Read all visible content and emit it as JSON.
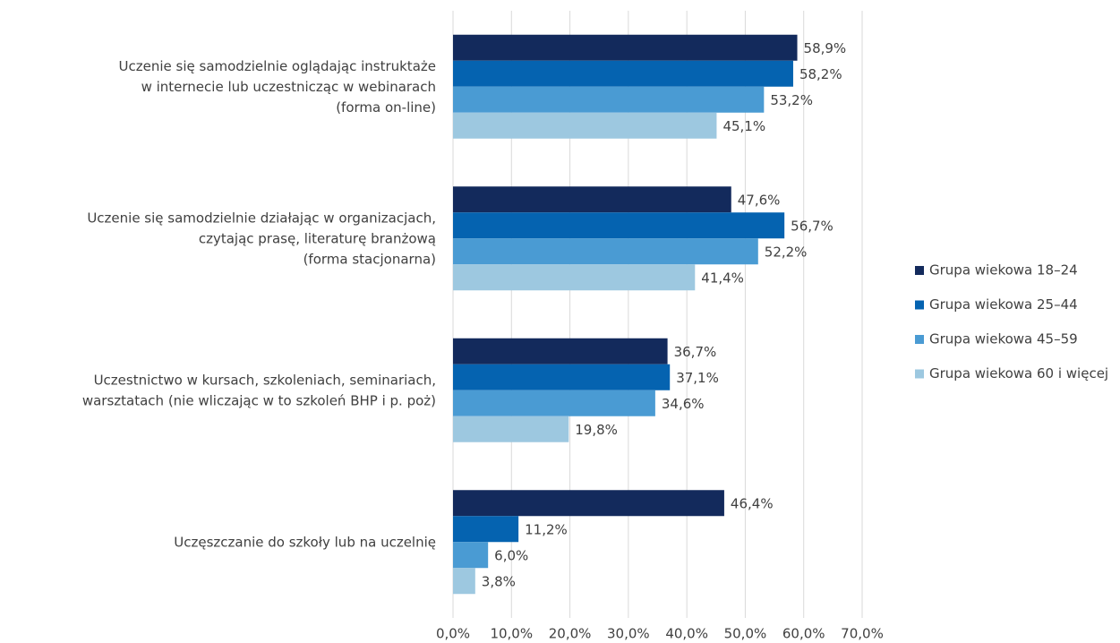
{
  "chart_data": {
    "type": "bar",
    "orientation": "horizontal",
    "categories": [
      "Uczenie się samodzielnie oglądając instruktaże\nw internecie lub uczestnicząc w webinarach\n(forma on-line)",
      "Uczenie się samodzielnie działając w organizacjach,\nczytając prasę,  literaturę branżową\n(forma stacjonarna)",
      "Uczestnictwo w kursach, szkoleniach, seminariach,\nwarsztatach (nie wliczając w to szkoleń BHP i p. poż)",
      "Uczęszczanie do szkoły lub na uczelnię"
    ],
    "series": [
      {
        "name": "Grupa wiekowa 18–24",
        "color": "#132a5c",
        "values": [
          58.9,
          47.6,
          36.7,
          46.4
        ],
        "value_labels": [
          "58,9%",
          "47,6%",
          "36,7%",
          "46,4%"
        ]
      },
      {
        "name": "Grupa wiekowa 25–44",
        "color": "#0563b0",
        "values": [
          58.2,
          56.7,
          37.1,
          11.2
        ],
        "value_labels": [
          "58,2%",
          "56,7%",
          "37,1%",
          "11,2%"
        ]
      },
      {
        "name": "Grupa wiekowa 45–59",
        "color": "#4a9bd3",
        "values": [
          53.2,
          52.2,
          34.6,
          6.0
        ],
        "value_labels": [
          "53,2%",
          "52,2%",
          "34,6%",
          "6,0%"
        ]
      },
      {
        "name": "Grupa wiekowa 60 i więcej",
        "color": "#9dc8e0",
        "values": [
          45.1,
          41.4,
          19.8,
          3.8
        ],
        "value_labels": [
          "45,1%",
          "41,4%",
          "19,8%",
          "3,8%"
        ]
      }
    ],
    "xlim": [
      0,
      70
    ],
    "xticks": [
      {
        "value": 0,
        "label": "0,0%"
      },
      {
        "value": 10,
        "label": "10,0%"
      },
      {
        "value": 20,
        "label": "20,0%"
      },
      {
        "value": 30,
        "label": "30,0%"
      },
      {
        "value": 40,
        "label": "40,0%"
      },
      {
        "value": 50,
        "label": "50,0%"
      },
      {
        "value": 60,
        "label": "60,0%"
      },
      {
        "value": 70,
        "label": "70,0%"
      }
    ],
    "grid": true,
    "legend": "right"
  }
}
